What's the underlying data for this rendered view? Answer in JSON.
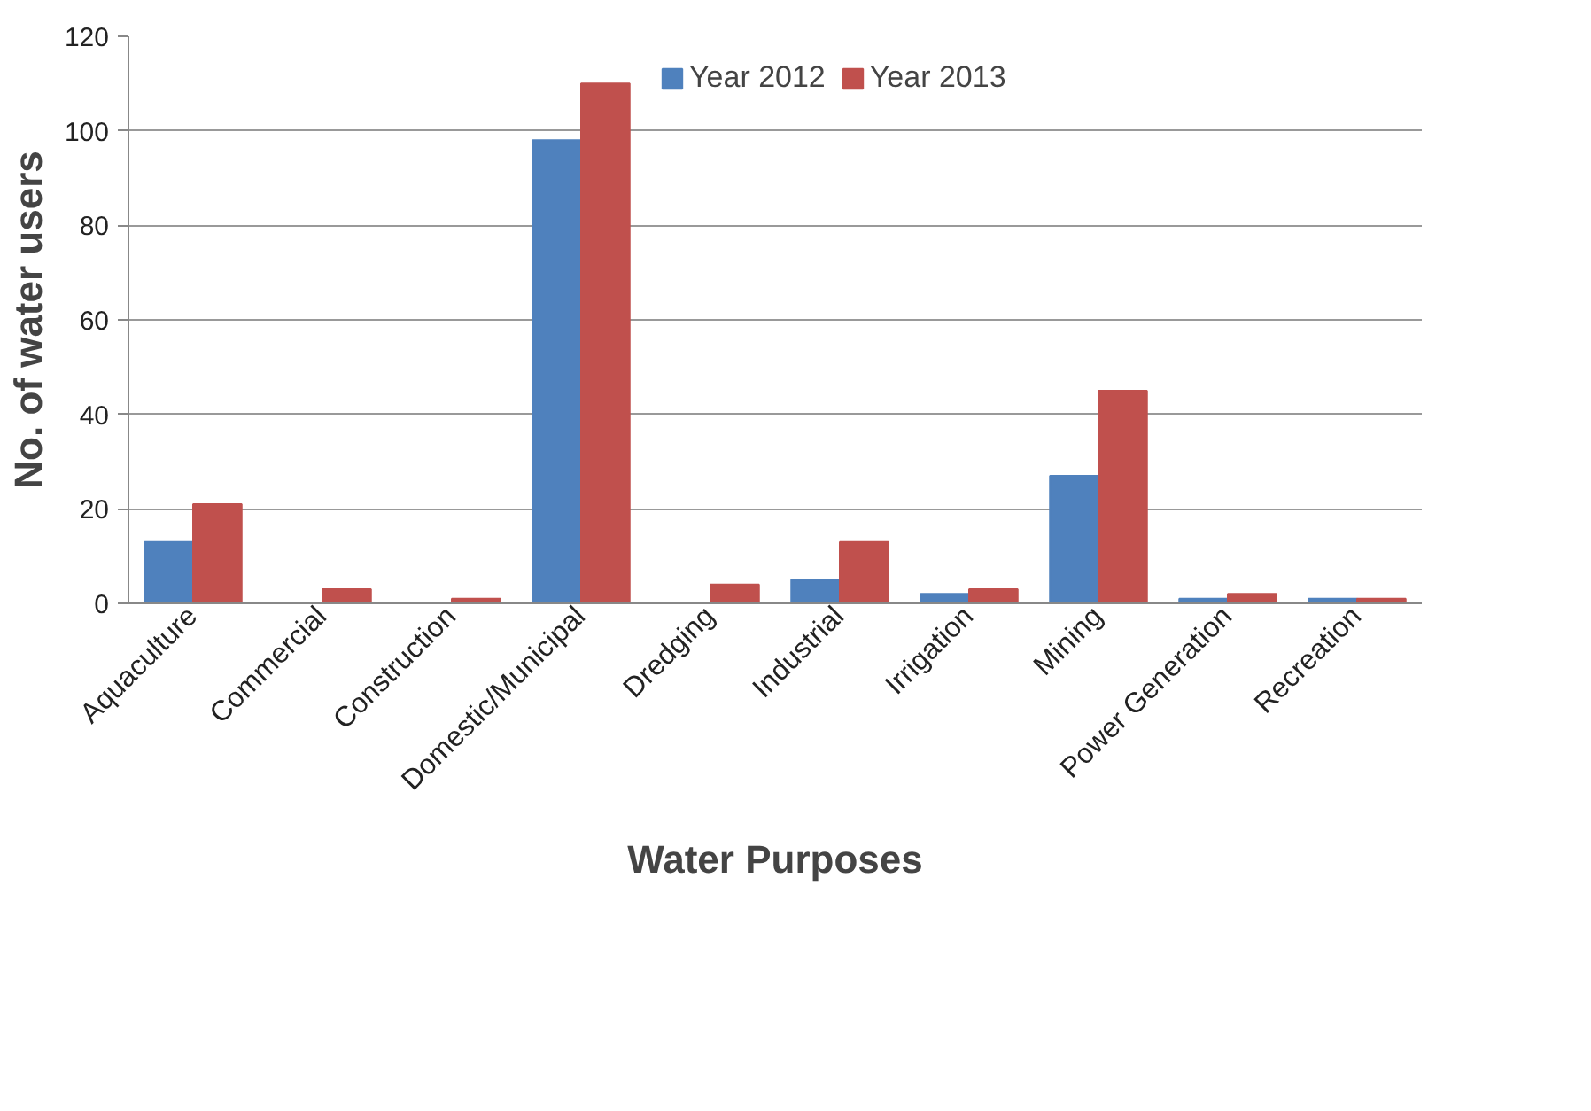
{
  "chart_data": {
    "type": "bar",
    "xlabel": "Water Purposes",
    "ylabel": "No. of water users",
    "categories": [
      "Aquaculture",
      "Commercial",
      "Construction",
      "Domestic/Municipal",
      "Dredging",
      "Industrial",
      "Irrigation",
      "Mining",
      "Power Generation",
      "Recreation"
    ],
    "series": [
      {
        "name": "Year 2012",
        "color": "#4f81bd",
        "values": [
          13,
          0,
          0,
          98,
          0,
          5,
          2,
          27,
          1,
          1
        ]
      },
      {
        "name": "Year 2013",
        "color": "#c0504d",
        "values": [
          21,
          3,
          1,
          110,
          4,
          13,
          3,
          45,
          2,
          1
        ]
      }
    ],
    "ylim": [
      0,
      120
    ],
    "yticks": [
      0,
      20,
      40,
      60,
      80,
      100,
      120
    ],
    "grid": "y",
    "legend": "top"
  }
}
